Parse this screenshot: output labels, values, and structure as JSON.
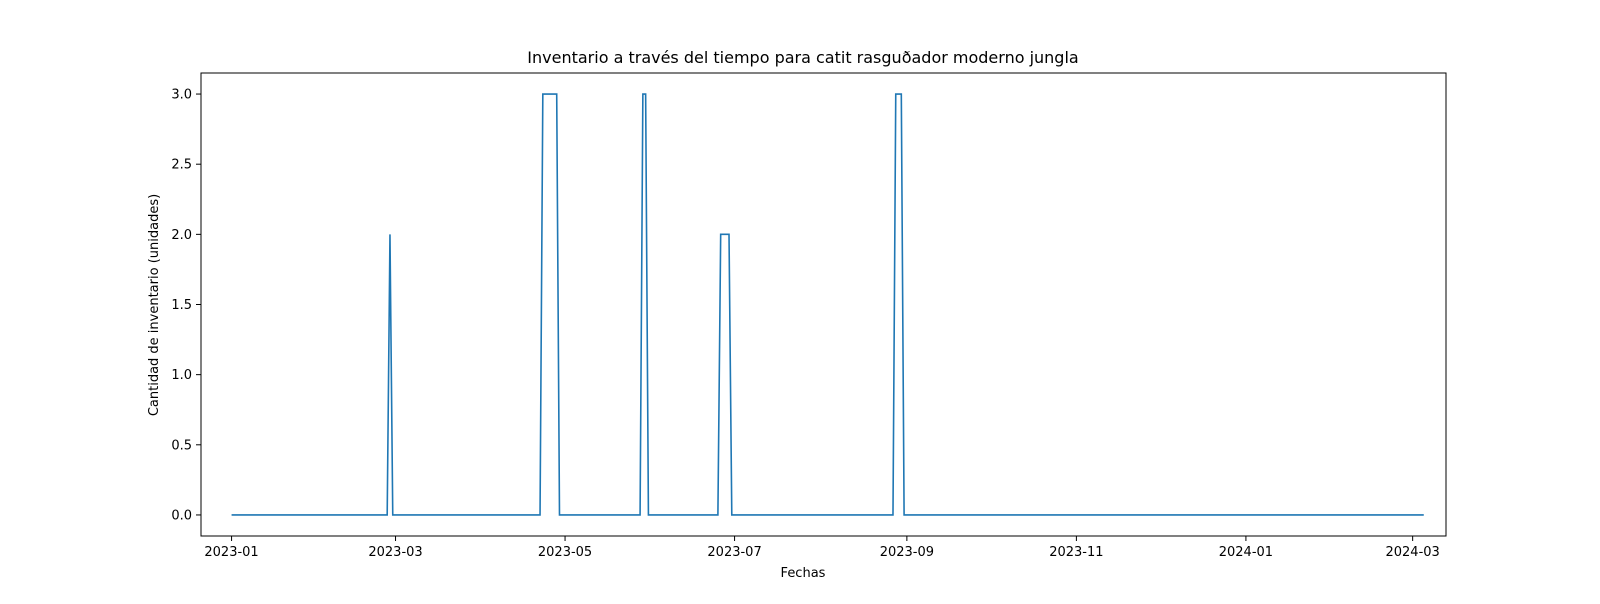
{
  "chart_data": {
    "type": "line",
    "title": "Inventario a través del tiempo para catit rasguðador  moderno jungla",
    "xlabel": "Fechas",
    "ylabel": "Cantidad de inventario (unidades)",
    "x_axis_type": "date",
    "xlim": [
      "2022-12-21",
      "2024-03-13"
    ],
    "ylim": [
      -0.15,
      3.15
    ],
    "x_ticks": [
      "2023-01",
      "2023-03",
      "2023-05",
      "2023-07",
      "2023-09",
      "2023-11",
      "2024-01",
      "2024-03"
    ],
    "y_ticks": [
      "0.0",
      "0.5",
      "1.0",
      "1.5",
      "2.0",
      "2.5",
      "3.0"
    ],
    "grid": false,
    "legend": "none",
    "line_color": "#1f77b4",
    "series": [
      {
        "x": [
          "2023-01-01",
          "2023-02-26",
          "2023-02-27",
          "2023-02-28",
          "2023-04-22",
          "2023-04-23",
          "2023-04-28",
          "2023-04-29",
          "2023-05-28",
          "2023-05-29",
          "2023-05-30",
          "2023-05-31",
          "2023-06-25",
          "2023-06-26",
          "2023-06-29",
          "2023-06-30",
          "2023-08-27",
          "2023-08-28",
          "2023-08-30",
          "2023-08-31",
          "2024-03-05"
        ],
        "y": [
          0,
          0,
          2,
          0,
          0,
          3,
          3,
          0,
          0,
          3,
          3,
          0,
          0,
          2,
          2,
          0,
          0,
          3,
          3,
          0,
          0
        ]
      }
    ]
  }
}
